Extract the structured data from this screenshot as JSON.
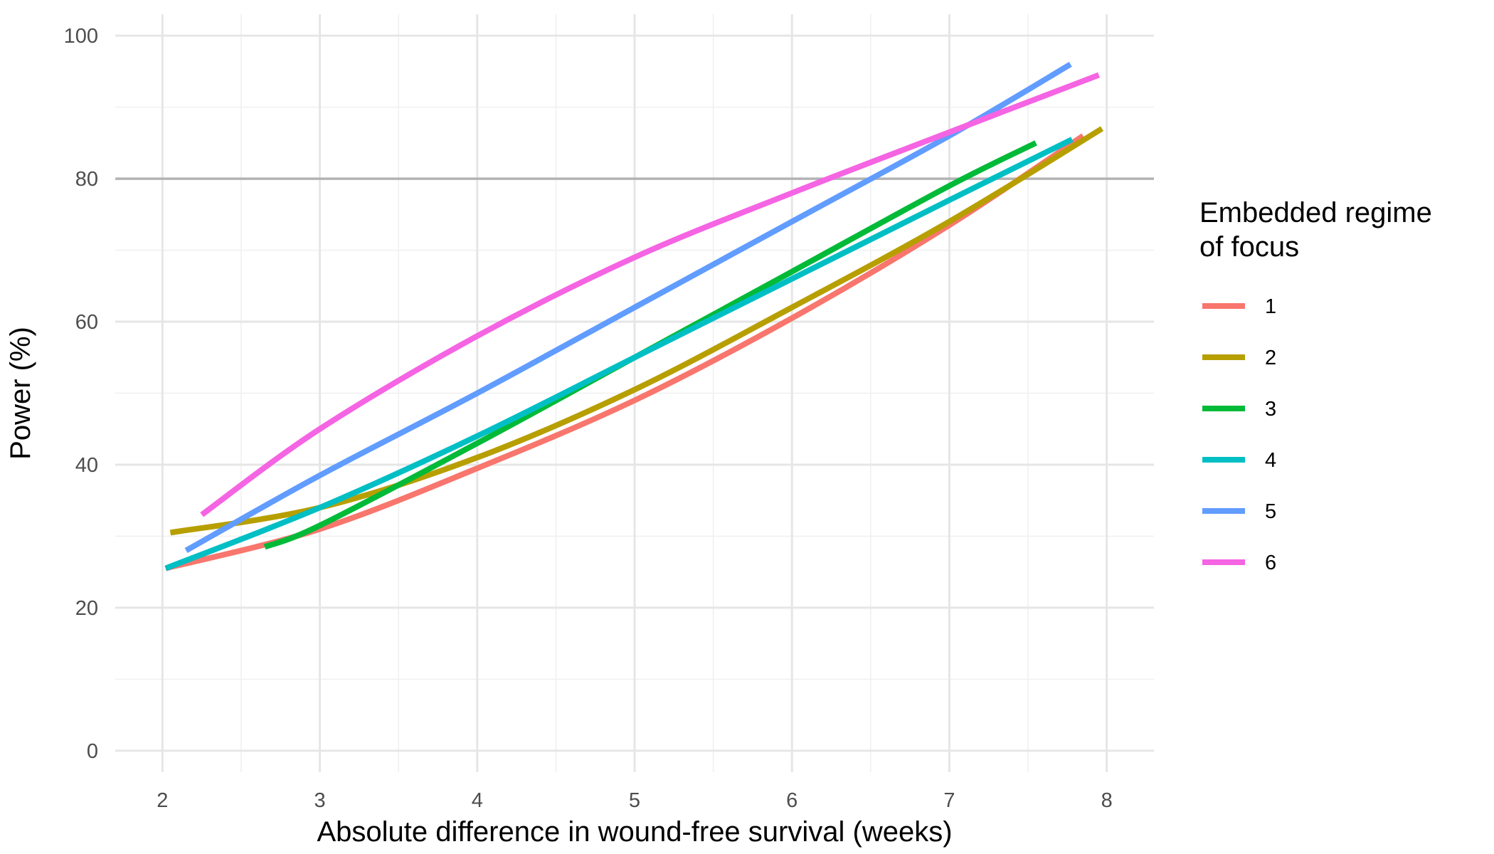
{
  "chart_data": {
    "type": "line",
    "title": "",
    "xlabel": "Absolute difference in wound-free survival (weeks)",
    "ylabel": "Power (%)",
    "xlim": [
      1.7,
      8.3
    ],
    "ylim": [
      -3,
      103
    ],
    "x_ticks": [
      2,
      3,
      4,
      5,
      6,
      7,
      8
    ],
    "y_ticks": [
      0,
      20,
      40,
      60,
      80,
      100
    ],
    "reference_line_y": 80,
    "grid": true,
    "legend": {
      "title_line1": "Embedded regime",
      "title_line2": "of focus",
      "position": "right"
    },
    "series": [
      {
        "name": "1",
        "color": "#F8766D",
        "x": [
          2.02,
          3,
          4,
          5,
          6,
          7,
          7.85
        ],
        "y": [
          25.5,
          31,
          39.5,
          49,
          60.5,
          73.5,
          86
        ]
      },
      {
        "name": "2",
        "color": "#B79F00",
        "x": [
          2.05,
          3,
          4,
          5,
          6,
          7,
          7.97
        ],
        "y": [
          30.5,
          34,
          41,
          50.5,
          62,
          74,
          87
        ]
      },
      {
        "name": "3",
        "color": "#00BA38",
        "x": [
          2.65,
          3,
          4,
          5,
          6,
          7,
          7.55
        ],
        "y": [
          28.5,
          31.5,
          43,
          55,
          67,
          79,
          85
        ]
      },
      {
        "name": "4",
        "color": "#00BFC4",
        "x": [
          2.02,
          3,
          4,
          5,
          6,
          7,
          7.78
        ],
        "y": [
          25.5,
          34,
          44,
          55,
          66,
          77,
          85.5
        ]
      },
      {
        "name": "5",
        "color": "#619CFF",
        "x": [
          2.15,
          3,
          4,
          5,
          6,
          7,
          7.77
        ],
        "y": [
          28,
          38.5,
          50,
          62,
          74,
          86,
          96
        ]
      },
      {
        "name": "6",
        "color": "#F564E3",
        "x": [
          2.25,
          3,
          4,
          5,
          6,
          7,
          7.95
        ],
        "y": [
          33,
          45,
          58,
          69,
          78,
          86.5,
          94.5
        ]
      }
    ]
  }
}
